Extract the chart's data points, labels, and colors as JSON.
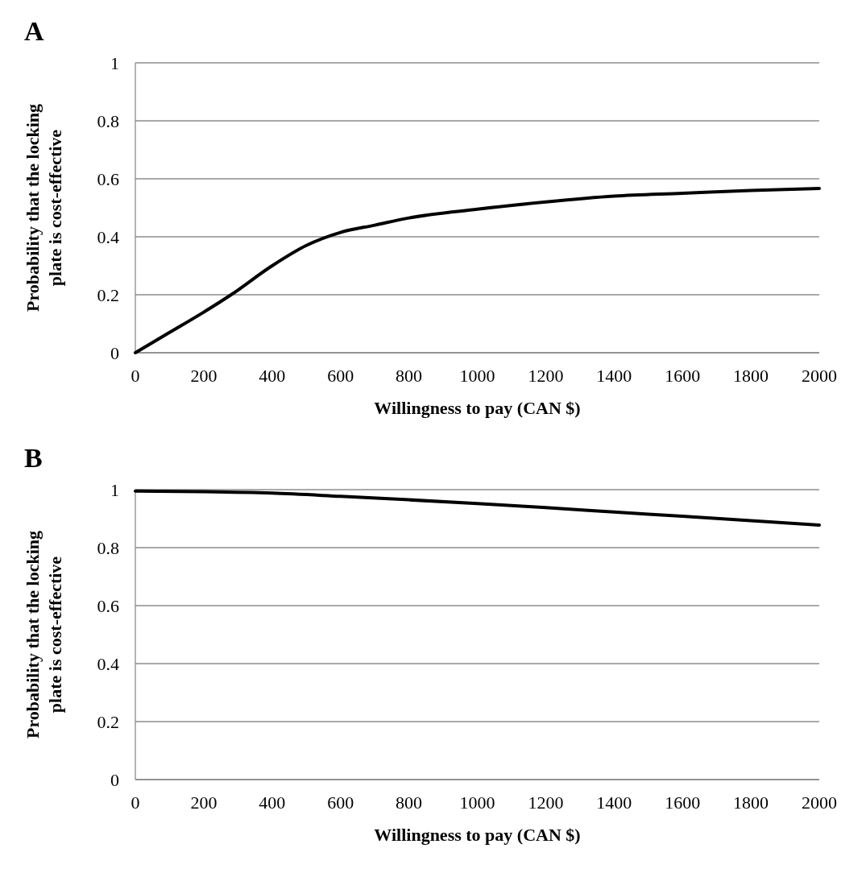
{
  "chart_data": [
    {
      "type": "line",
      "title": "A",
      "xlabel": "Willingness to pay (CAN $)",
      "ylabel": "Probability that the locking plate is cost-effective",
      "x": [
        0,
        100,
        200,
        280,
        400,
        500,
        600,
        700,
        800,
        1000,
        1200,
        1400,
        1600,
        1800,
        2000
      ],
      "series": [
        {
          "color": "#000000",
          "values": [
            0,
            0.07,
            0.14,
            0.2,
            0.3,
            0.37,
            0.415,
            0.44,
            0.465,
            0.495,
            0.52,
            0.54,
            0.55,
            0.56,
            0.567
          ]
        }
      ],
      "xlim": [
        0,
        2000
      ],
      "xticks": [
        0,
        200,
        400,
        600,
        800,
        1000,
        1200,
        1400,
        1600,
        1800,
        2000
      ],
      "ylim": [
        0,
        1
      ],
      "yticks": [
        0,
        0.2,
        0.4,
        0.6,
        0.8,
        1
      ],
      "grid": "y",
      "marker": "none",
      "line_style": "solid"
    },
    {
      "type": "line",
      "title": "B",
      "xlabel": "Willingness to pay (CAN $)",
      "ylabel": "Probability that the locking plate is cost-effective",
      "x": [
        0,
        200,
        400,
        600,
        800,
        1000,
        1200,
        1400,
        1600,
        1800,
        2000
      ],
      "series": [
        {
          "color": "#000000",
          "values": [
            0.995,
            0.993,
            0.988,
            0.977,
            0.965,
            0.952,
            0.938,
            0.923,
            0.908,
            0.893,
            0.878
          ]
        }
      ],
      "xlim": [
        0,
        2000
      ],
      "xticks": [
        0,
        200,
        400,
        600,
        800,
        1000,
        1200,
        1400,
        1600,
        1800,
        2000
      ],
      "ylim": [
        0,
        1
      ],
      "yticks": [
        0,
        0.2,
        0.4,
        0.6,
        0.8,
        1
      ],
      "grid": "y",
      "marker": "none",
      "line_style": "solid"
    }
  ]
}
